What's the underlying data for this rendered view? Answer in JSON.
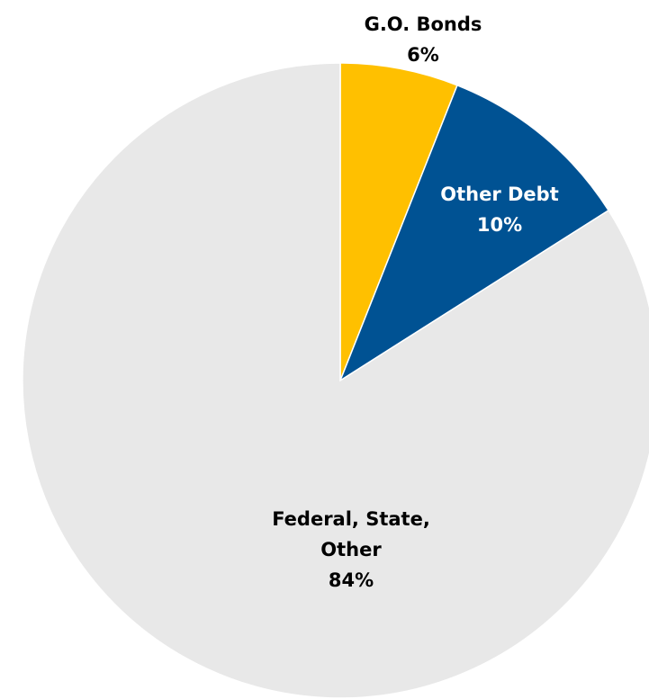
{
  "chart_data": {
    "type": "pie",
    "start_angle_deg": 0,
    "direction": "clockwise",
    "slices": [
      {
        "name": "G.O. Bonds",
        "label_lines": [
          "G.O. Bonds"
        ],
        "value": 6,
        "percent_label": "6%",
        "color": "#FFC000",
        "label_color": "#000000",
        "label_placement": "outside"
      },
      {
        "name": "Other Debt",
        "label_lines": [
          "Other Debt"
        ],
        "value": 10,
        "percent_label": "10%",
        "color": "#005293",
        "label_color": "#FFFFFF",
        "label_placement": "inside"
      },
      {
        "name": "Federal, State, Other",
        "label_lines": [
          "Federal, State,",
          "Other"
        ],
        "value": 84,
        "percent_label": "84%",
        "color": "#E8E8E8",
        "label_color": "#000000",
        "label_placement": "inside"
      }
    ]
  }
}
